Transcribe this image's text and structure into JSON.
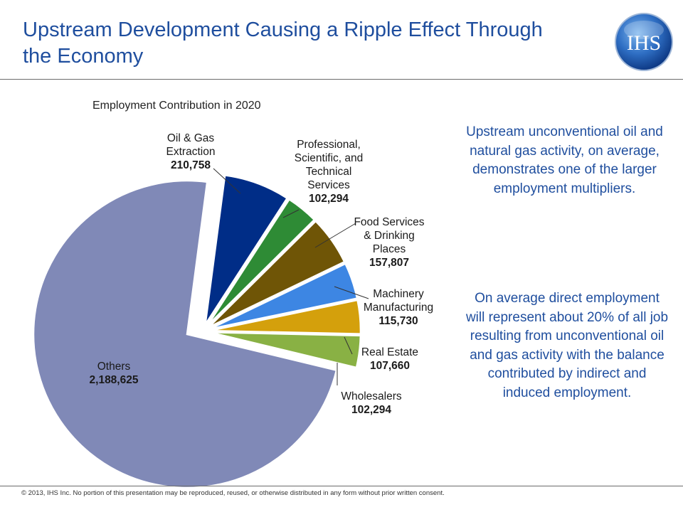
{
  "header": {
    "title_line1": "Upstream Development Causing a Ripple Effect Through",
    "title_line2": "the Economy",
    "logo_text": "IHS"
  },
  "chart_data": {
    "type": "pie",
    "title": "Employment Contribution in 2020",
    "slices": [
      {
        "label": [
          "Oil & Gas",
          "Extraction"
        ],
        "value": 210758,
        "value_text": "210,758",
        "color": "#002d87",
        "exploded": true
      },
      {
        "label": [
          "Professional,",
          "Scientific, and",
          "Technical",
          "Services"
        ],
        "value": 102294,
        "value_text": "102,294",
        "color": "#2e8b35",
        "exploded": true
      },
      {
        "label": [
          "Food Services",
          "& Drinking",
          "Places"
        ],
        "value": 157807,
        "value_text": "157,807",
        "color": "#6f5506",
        "exploded": true
      },
      {
        "label": [
          "Machinery",
          "Manufacturing"
        ],
        "value": 115730,
        "value_text": "115,730",
        "color": "#3d86e3",
        "exploded": true
      },
      {
        "label": [
          "Real Estate"
        ],
        "value": 107660,
        "value_text": "107,660",
        "color": "#d4a00c",
        "exploded": true
      },
      {
        "label": [
          "Wholesalers"
        ],
        "value": 102294,
        "value_text": "102,294",
        "color": "#89b144",
        "exploded": true
      },
      {
        "label": [
          "Others"
        ],
        "value": 2188625,
        "value_text": "2,188,625",
        "color": "#8089b7",
        "exploded": false
      }
    ]
  },
  "side_notes": {
    "note1": "Upstream unconventional oil and natural gas activity, on average, demonstrates one of the larger employment multipliers.",
    "note2": "On average direct employment will represent about 20% of all job resulting from unconventional oil and gas activity with the balance contributed by indirect and induced employment."
  },
  "footer": {
    "copyright": "© 2013, IHS Inc. No portion of this presentation may be reproduced, reused, or otherwise distributed in any form without prior written consent."
  }
}
